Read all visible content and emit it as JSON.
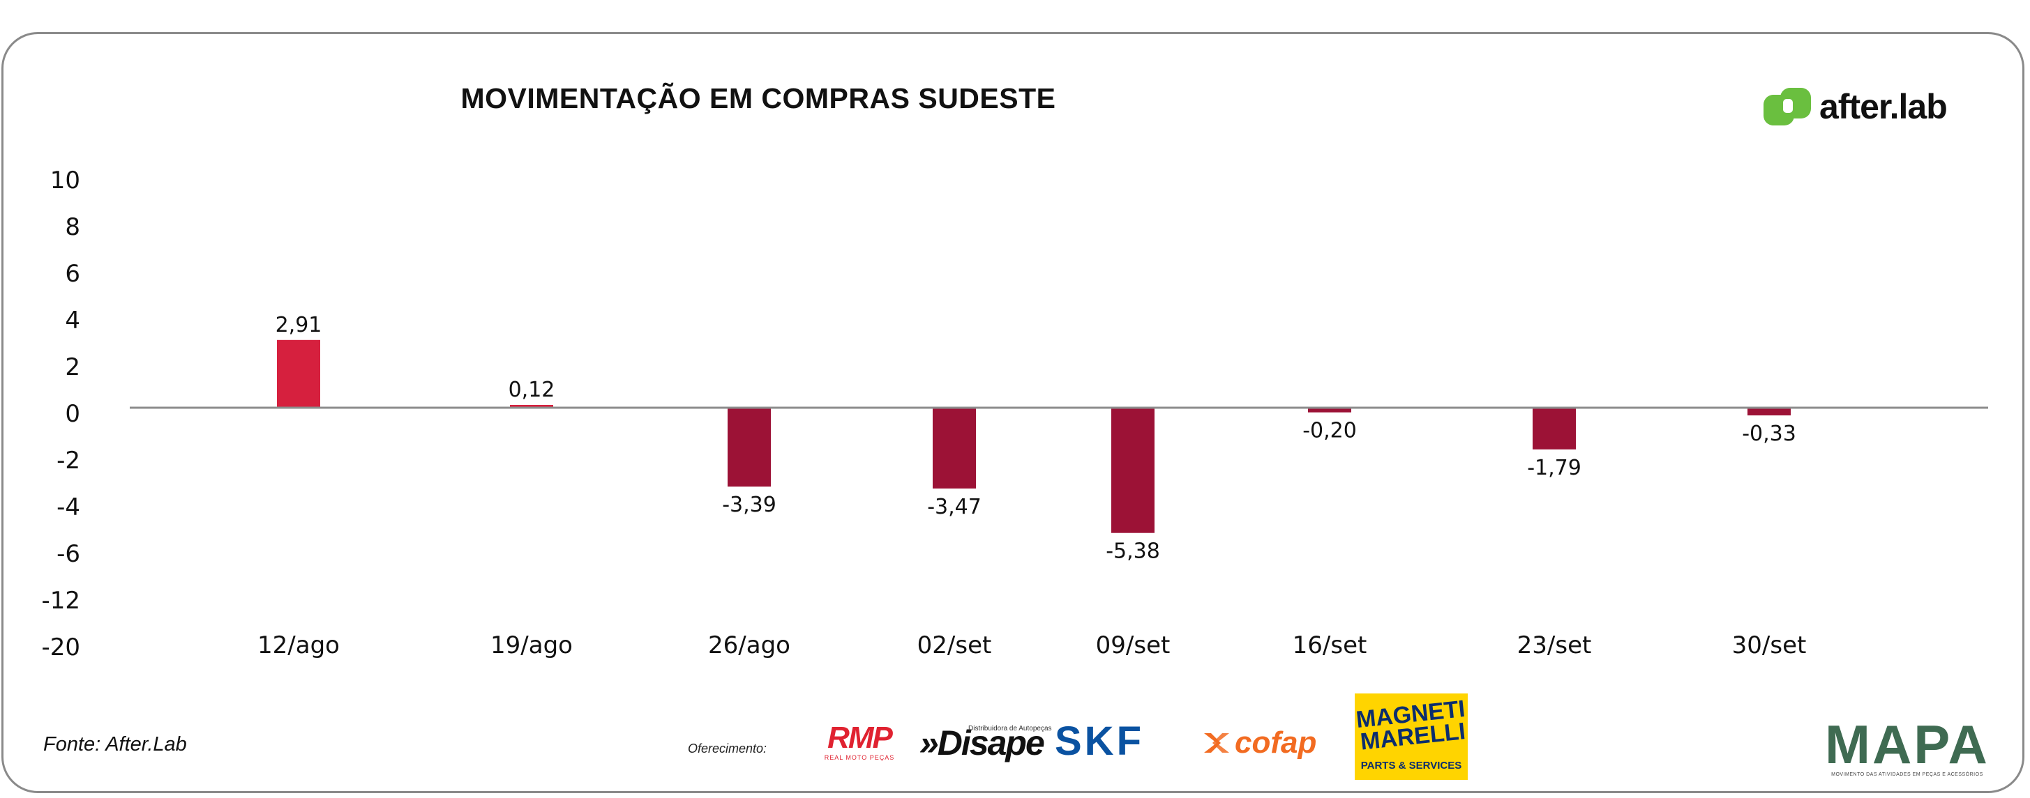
{
  "chart_data": {
    "type": "bar",
    "title": "MOVIMENTAÇÃO EM COMPRAS SUDESTE",
    "xlabel": "",
    "ylabel": "",
    "categories": [
      "12/ago",
      "19/ago",
      "26/ago",
      "02/set",
      "09/set",
      "16/set",
      "23/set",
      "30/set"
    ],
    "values": [
      2.91,
      0.12,
      -3.39,
      -3.47,
      -5.38,
      -0.2,
      -1.79,
      -0.33
    ],
    "value_labels": [
      "2,91",
      "0,12",
      "-3,39",
      "-3,47",
      "-5,38",
      "-0,20",
      "-1,79",
      "-0,33"
    ],
    "y_tick_labels": [
      "10",
      "8",
      "6",
      "4",
      "2",
      "0",
      "-2",
      "-4",
      "-6",
      "-12",
      "-20"
    ],
    "grid": false,
    "legend": "none",
    "colors": {
      "positive": "#d6203e",
      "negative": "#9c1236",
      "axis": "#8c8c8c"
    }
  },
  "source": "Fonte: After.Lab",
  "sponsor_label": "Oferecimento:",
  "logos": {
    "afterlab": "after.lab",
    "rmp": {
      "name": "RMP",
      "tagline": "REAL MOTO PEÇAS"
    },
    "disape": {
      "name": "»Disape",
      "tagline": "Distribuidora de Autopeças"
    },
    "skf": "SKF",
    "cofap": "cofap",
    "magneti": {
      "name": "MAGNETI MARELLI",
      "tagline": "PARTS & SERVICES"
    },
    "mapa": {
      "name": "MAPA",
      "tagline": "MOVIMENTO DAS ATIVIDADES EM PEÇAS E ACESSÓRIOS"
    }
  }
}
